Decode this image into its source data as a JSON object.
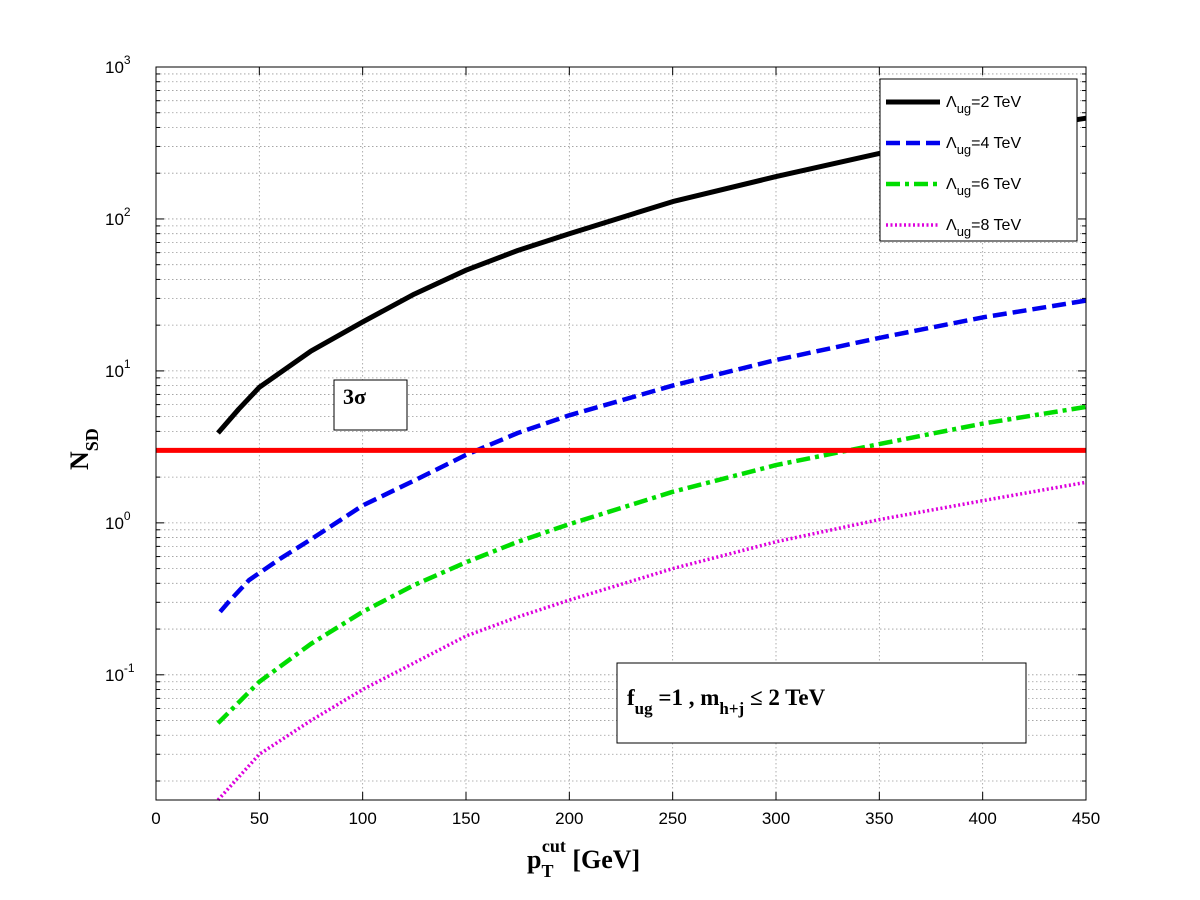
{
  "chart_data": {
    "type": "line",
    "xlabel": {
      "main": "p",
      "sub": "T",
      "sup": "cut",
      "unit": " [GeV]"
    },
    "ylabel": {
      "main": "N",
      "sub": "SD"
    },
    "xlim": [
      0,
      450
    ],
    "ylim": [
      0.015,
      1000
    ],
    "yscale": "log",
    "grid": true,
    "legend_position": "top-right",
    "x_ticks": [
      "0",
      "50",
      "100",
      "150",
      "200",
      "250",
      "300",
      "350",
      "400",
      "450"
    ],
    "y_ticks": [
      {
        "base": "10",
        "exp": "-1",
        "value": 0.1
      },
      {
        "base": "10",
        "exp": "0",
        "value": 1
      },
      {
        "base": "10",
        "exp": "1",
        "value": 10
      },
      {
        "base": "10",
        "exp": "2",
        "value": 100
      },
      {
        "base": "10",
        "exp": "3",
        "value": 1000
      }
    ],
    "series": [
      {
        "name": {
          "lambda": "Λ",
          "sub": "ug",
          "rest": "=2 TeV"
        },
        "color": "#000000",
        "dash": "solid",
        "width": 5,
        "x": [
          30,
          40,
          50,
          75,
          100,
          125,
          150,
          175,
          200,
          250,
          300,
          350,
          400,
          450
        ],
        "y": [
          3.9,
          5.6,
          7.8,
          13.5,
          21,
          32,
          46,
          62,
          80,
          130,
          190,
          270,
          360,
          460
        ]
      },
      {
        "name": {
          "lambda": "Λ",
          "sub": "ug",
          "rest": "=4 TeV"
        },
        "color": "#0000ee",
        "dash": "dashed",
        "width": 4.5,
        "x": [
          31,
          35,
          45,
          60,
          75,
          100,
          125,
          150,
          175,
          200,
          250,
          300,
          350,
          400,
          450
        ],
        "y": [
          0.26,
          0.3,
          0.42,
          0.58,
          0.78,
          1.3,
          1.9,
          2.8,
          3.9,
          5.1,
          8,
          11.8,
          16.5,
          22.5,
          29
        ]
      },
      {
        "name": {
          "lambda": "Λ",
          "sub": "ug",
          "rest": "=6 TeV"
        },
        "color": "#00dd00",
        "dash": "dashdot",
        "width": 4.5,
        "x": [
          30,
          50,
          75,
          100,
          125,
          150,
          175,
          200,
          250,
          300,
          350,
          400,
          450
        ],
        "y": [
          0.048,
          0.09,
          0.16,
          0.26,
          0.39,
          0.55,
          0.75,
          0.98,
          1.6,
          2.4,
          3.3,
          4.5,
          5.8
        ]
      },
      {
        "name": {
          "lambda": "Λ",
          "sub": "ug",
          "rest": "=8 TeV"
        },
        "color": "#dd00dd",
        "dash": "dotted",
        "width": 3.5,
        "x": [
          30,
          50,
          75,
          100,
          125,
          150,
          175,
          200,
          250,
          300,
          350,
          400,
          450
        ],
        "y": [
          0.015,
          0.03,
          0.05,
          0.08,
          0.12,
          0.18,
          0.24,
          0.31,
          0.5,
          0.75,
          1.05,
          1.4,
          1.85
        ]
      }
    ],
    "reference_line": {
      "y": 3,
      "color": "#ff0000",
      "width": 5
    },
    "annotations": {
      "sigma_label": "3σ",
      "sigma_color": "#ee0000",
      "condition": {
        "f": "f",
        "f_sub": "ug",
        "f_rest": " =1 , m",
        "m_sub": "h+j",
        "m_rest": " ≤ 2 TeV"
      }
    }
  }
}
